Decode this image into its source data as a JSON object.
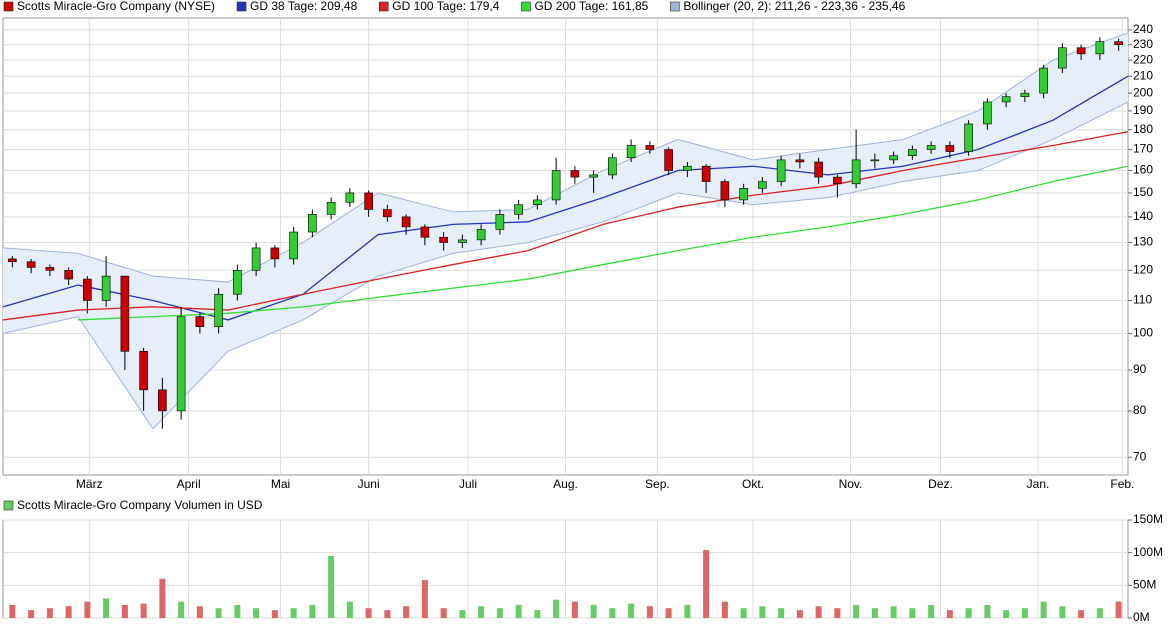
{
  "chart_data": [
    {
      "type": "candlestick",
      "name": "Scotts Miracle-Gro Company (NYSE)",
      "up_color": "#33cc33",
      "down_color": "#cc0000",
      "open": [
        124,
        123,
        121,
        120,
        117,
        110,
        118,
        95,
        85,
        80,
        105,
        102,
        112,
        120,
        128,
        124,
        134,
        141,
        146,
        150,
        143,
        140,
        136,
        132,
        130,
        131,
        135,
        141,
        145,
        147,
        160,
        157,
        158,
        166,
        172,
        170,
        160,
        162,
        155,
        147,
        152,
        155,
        165,
        164,
        157,
        154,
        165,
        165,
        167,
        170,
        172,
        169,
        183,
        195,
        198,
        200,
        215,
        228,
        224,
        232
      ],
      "high": [
        125,
        124,
        122,
        121,
        118,
        125,
        118,
        96,
        88,
        108,
        106,
        114,
        122,
        130,
        129,
        136,
        143,
        148,
        152,
        151,
        145,
        141,
        137,
        134,
        133,
        137,
        143,
        147,
        149,
        166,
        162,
        160,
        168,
        175,
        174,
        171,
        164,
        163,
        156,
        154,
        157,
        167,
        168,
        166,
        158,
        180,
        168,
        169,
        172,
        174,
        174,
        185,
        197,
        200,
        202,
        217,
        231,
        230,
        235,
        234
      ],
      "low": [
        121,
        119,
        118,
        115,
        106,
        108,
        90,
        80,
        76,
        78,
        100,
        100,
        110,
        118,
        121,
        122,
        132,
        139,
        144,
        140,
        138,
        133,
        129,
        127,
        128,
        129,
        133,
        139,
        143,
        145,
        154,
        150,
        156,
        164,
        168,
        158,
        157,
        150,
        144,
        145,
        150,
        153,
        161,
        154,
        148,
        152,
        161,
        163,
        165,
        168,
        166,
        167,
        180,
        192,
        195,
        197,
        212,
        220,
        220,
        226
      ],
      "close": [
        123,
        121,
        120,
        117,
        110,
        118,
        95,
        85,
        80,
        105,
        102,
        112,
        120,
        128,
        124,
        134,
        141,
        146,
        150,
        143,
        140,
        136,
        132,
        130,
        131,
        135,
        141,
        145,
        147,
        160,
        157,
        158,
        166,
        172,
        170,
        160,
        162,
        155,
        147,
        152,
        155,
        165,
        164,
        157,
        154,
        165,
        165,
        167,
        170,
        172,
        169,
        183,
        195,
        198,
        200,
        215,
        228,
        224,
        232,
        230
      ],
      "xlim": [
        0,
        60
      ],
      "xticks": [
        {
          "value": 4.6,
          "label": "März"
        },
        {
          "value": 9.9,
          "label": "April"
        },
        {
          "value": 14.8,
          "label": "Mai"
        },
        {
          "value": 19.5,
          "label": "Juni"
        },
        {
          "value": 24.8,
          "label": "Juli"
        },
        {
          "value": 30.0,
          "label": "Aug."
        },
        {
          "value": 34.9,
          "label": "Sep."
        },
        {
          "value": 40.0,
          "label": "Okt."
        },
        {
          "value": 45.2,
          "label": "Nov."
        },
        {
          "value": 50.0,
          "label": "Dez."
        },
        {
          "value": 55.2,
          "label": "Jan."
        },
        {
          "value": 59.7,
          "label": "Feb."
        }
      ],
      "ylim": [
        66.5,
        248.4
      ],
      "yticks": [
        70,
        80,
        90,
        100,
        110,
        120,
        130,
        140,
        150,
        160,
        170,
        180,
        190,
        200,
        210,
        220,
        230,
        240
      ],
      "log_scale": true,
      "grid": true,
      "bollinger": {
        "name": "Bollinger (20, 2): 211,26 - 223,36 - 235,46",
        "color": "#9db4dc",
        "fill": "#e6eef9",
        "x": [
          0,
          4,
          8,
          12,
          16,
          20,
          24,
          28,
          32,
          36,
          40,
          44,
          48,
          52,
          56,
          60
        ],
        "upper": [
          128,
          126,
          118,
          116,
          130,
          150,
          142,
          143,
          160,
          175,
          165,
          170,
          175,
          190,
          220,
          238
        ],
        "lower": [
          100,
          105,
          76,
          95,
          104,
          118,
          126,
          130,
          138,
          150,
          145,
          148,
          155,
          160,
          175,
          195
        ]
      },
      "series": [
        {
          "name": "GD 38 Tage: 209,48",
          "color": "#2233bb",
          "x": [
            0,
            4,
            8,
            12,
            16,
            20,
            24,
            28,
            32,
            36,
            40,
            44,
            48,
            52,
            56,
            60
          ],
          "values": [
            108,
            115,
            110,
            104,
            112,
            133,
            137,
            138,
            148,
            160,
            162,
            158,
            162,
            170,
            185,
            210
          ]
        },
        {
          "name": "GD 100 Tage: 179,4",
          "color": "#dd2222",
          "x": [
            0,
            4,
            8,
            12,
            16,
            20,
            24,
            28,
            32,
            36,
            40,
            44,
            48,
            52,
            56,
            60
          ],
          "values": [
            104,
            107,
            108,
            107,
            112,
            117,
            122,
            127,
            137,
            144,
            149,
            153,
            160,
            166,
            172,
            179
          ]
        },
        {
          "name": "GD 200 Tage: 161,85",
          "color": "#33dd33",
          "x": [
            0,
            4,
            8,
            12,
            16,
            20,
            24,
            28,
            32,
            36,
            40,
            44,
            48,
            52,
            56,
            60
          ],
          "values": [
            null,
            104,
            105,
            106,
            108,
            111,
            114,
            117,
            122,
            127,
            132,
            136,
            141,
            147,
            155,
            162
          ]
        }
      ]
    },
    {
      "type": "bar",
      "name": "Scotts Miracle-Gro Company Volumen in USD",
      "color": "#66cc66",
      "values": [
        20,
        12,
        15,
        18,
        25,
        30,
        20,
        22,
        60,
        25,
        18,
        15,
        20,
        15,
        12,
        15,
        20,
        95,
        25,
        15,
        12,
        18,
        58,
        15,
        12,
        18,
        15,
        20,
        12,
        28,
        25,
        20,
        15,
        22,
        18,
        15,
        20,
        104,
        25,
        15,
        18,
        15,
        12,
        18,
        15,
        20,
        15,
        18,
        15,
        20,
        12,
        15,
        20,
        12,
        15,
        25,
        18,
        12,
        15,
        25
      ],
      "xlim": [
        0,
        60
      ],
      "ylim": [
        0,
        150
      ],
      "yticks": [
        {
          "value": 0,
          "label": "0M"
        },
        {
          "value": 50,
          "label": "50M"
        },
        {
          "value": 100,
          "label": "100M"
        },
        {
          "value": 150,
          "label": "150M"
        }
      ],
      "grid": true
    }
  ]
}
